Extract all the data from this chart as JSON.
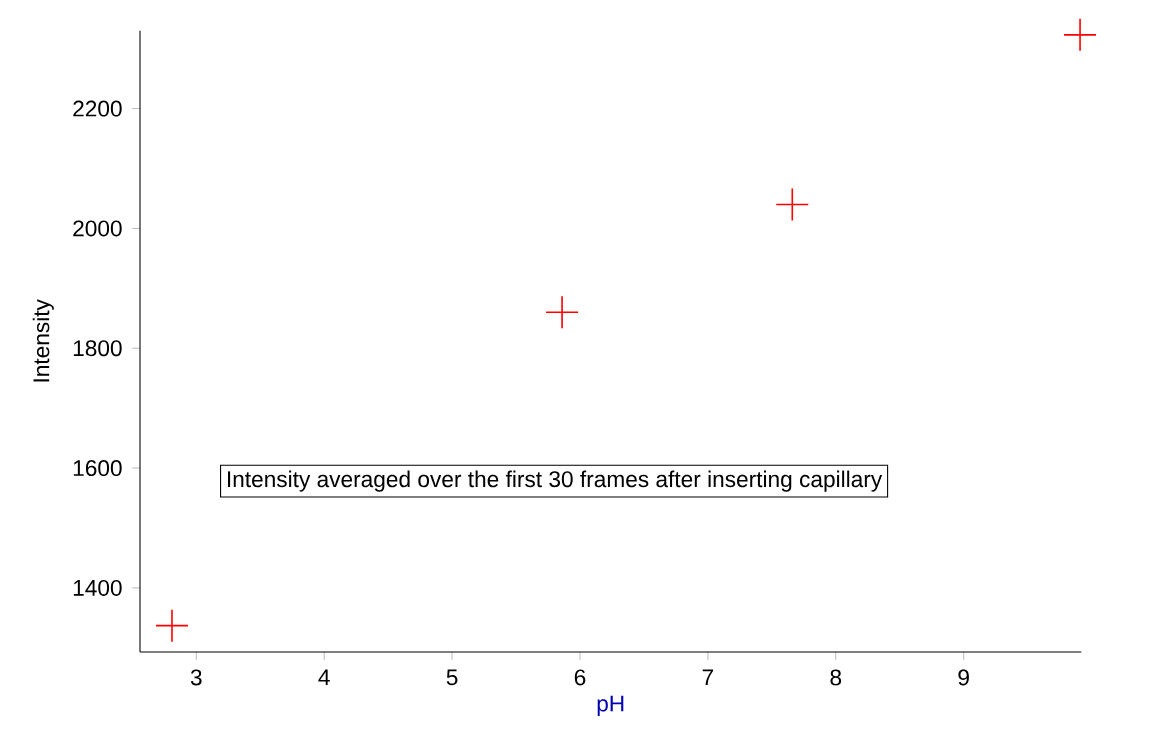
{
  "chart_data": {
    "type": "scatter",
    "xlabel": "pH",
    "ylabel": "Intensity",
    "x": [
      2.81,
      5.86,
      7.66,
      9.91
    ],
    "values": [
      1337,
      1860,
      2040,
      2323
    ],
    "color": "#ff0000",
    "marker": "cross",
    "grid": false,
    "xlim": [
      2.56,
      9.92
    ],
    "ylim": [
      1293,
      2330
    ],
    "xticks": [
      3,
      4,
      5,
      6,
      7,
      8,
      9
    ],
    "yticks": [
      1400,
      1600,
      1800,
      2000,
      2200
    ],
    "annotations": [
      "Intensity averaged over the first 30 frames after inserting capillary"
    ]
  }
}
